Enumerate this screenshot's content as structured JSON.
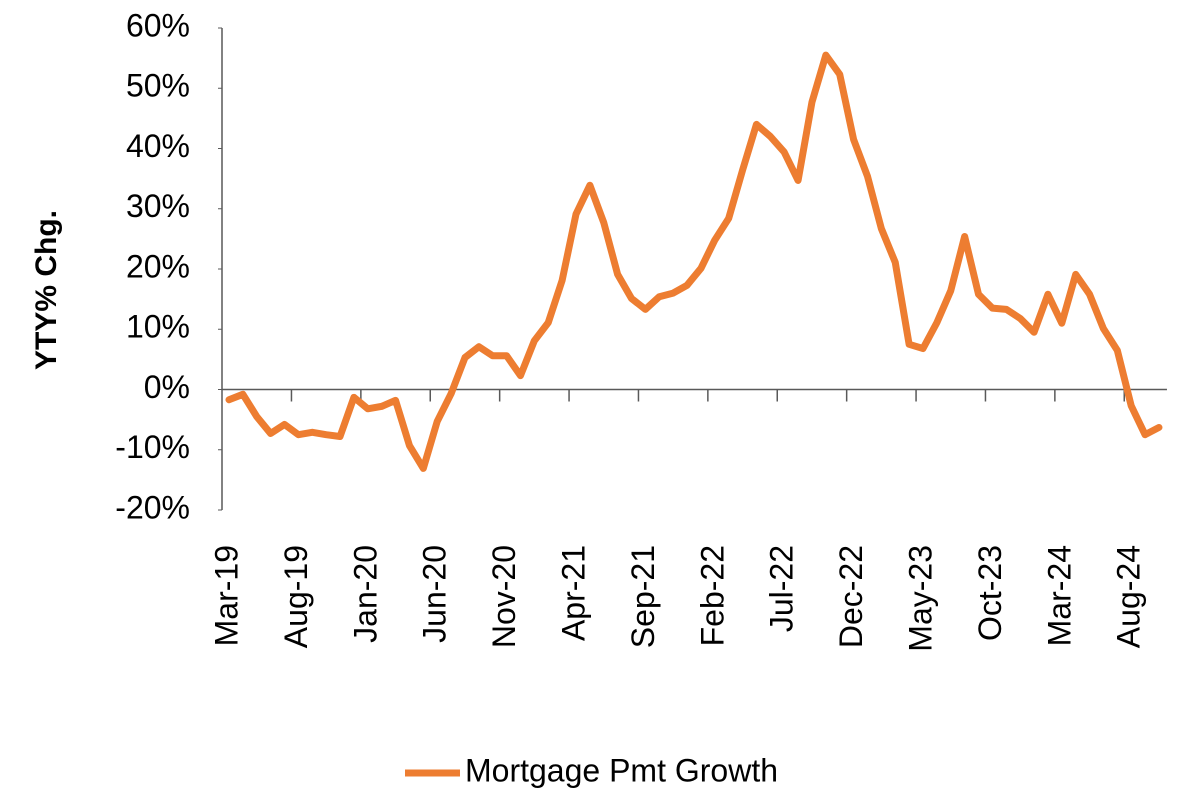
{
  "chart_data": {
    "type": "line",
    "y_label": "YTY% Chg.",
    "categories": [
      "Mar-19",
      null,
      null,
      null,
      null,
      "Aug-19",
      null,
      null,
      null,
      null,
      "Jan-20",
      null,
      null,
      null,
      null,
      "Jun-20",
      null,
      null,
      null,
      null,
      "Nov-20",
      null,
      null,
      null,
      null,
      "Apr-21",
      null,
      null,
      null,
      null,
      "Sep-21",
      null,
      null,
      null,
      null,
      "Feb-22",
      null,
      null,
      null,
      null,
      "Jul-22",
      null,
      null,
      null,
      null,
      "Dec-22",
      null,
      null,
      null,
      null,
      "May-23",
      null,
      null,
      null,
      null,
      "Oct-23",
      null,
      null,
      null,
      null,
      "Mar-24",
      null,
      null,
      null,
      null,
      "Aug-24",
      null,
      null
    ],
    "series": [
      {
        "name": "Mortgage Pmt Growth",
        "color": "#ed7d31",
        "values": [
          -1.7,
          -0.8,
          -4.5,
          -7.3,
          -5.8,
          -7.5,
          -7.1,
          -7.5,
          -7.8,
          -1.3,
          -3.2,
          -2.8,
          -1.8,
          -9.3,
          -13.1,
          -5.3,
          -0.7,
          5.3,
          7.1,
          5.6,
          5.6,
          2.3,
          8.1,
          11.1,
          18.1,
          29.1,
          33.9,
          27.7,
          19.1,
          15.1,
          13.3,
          15.4,
          16.0,
          17.3,
          20.1,
          24.8,
          28.4,
          36.4,
          44.0,
          42.0,
          39.4,
          34.7,
          47.7,
          55.5,
          52.3,
          41.5,
          35.4,
          26.7,
          21.1,
          7.5,
          6.8,
          11.1,
          16.4,
          25.4,
          15.8,
          13.5,
          13.3,
          11.8,
          9.5,
          15.8,
          11.0,
          19.1,
          15.8,
          10.1,
          6.5,
          -2.7,
          -7.5,
          -6.3
        ]
      }
    ],
    "ylim": [
      -20,
      60
    ],
    "yticks": [
      {
        "value": -20,
        "label": "-20%"
      },
      {
        "value": -10,
        "label": "-10%"
      },
      {
        "value": 0,
        "label": "0%"
      },
      {
        "value": 10,
        "label": "10%"
      },
      {
        "value": 20,
        "label": "20%"
      },
      {
        "value": 30,
        "label": "30%"
      },
      {
        "value": 40,
        "label": "40%"
      },
      {
        "value": 50,
        "label": "50%"
      },
      {
        "value": 60,
        "label": "60%"
      }
    ],
    "legend": "bottom"
  }
}
